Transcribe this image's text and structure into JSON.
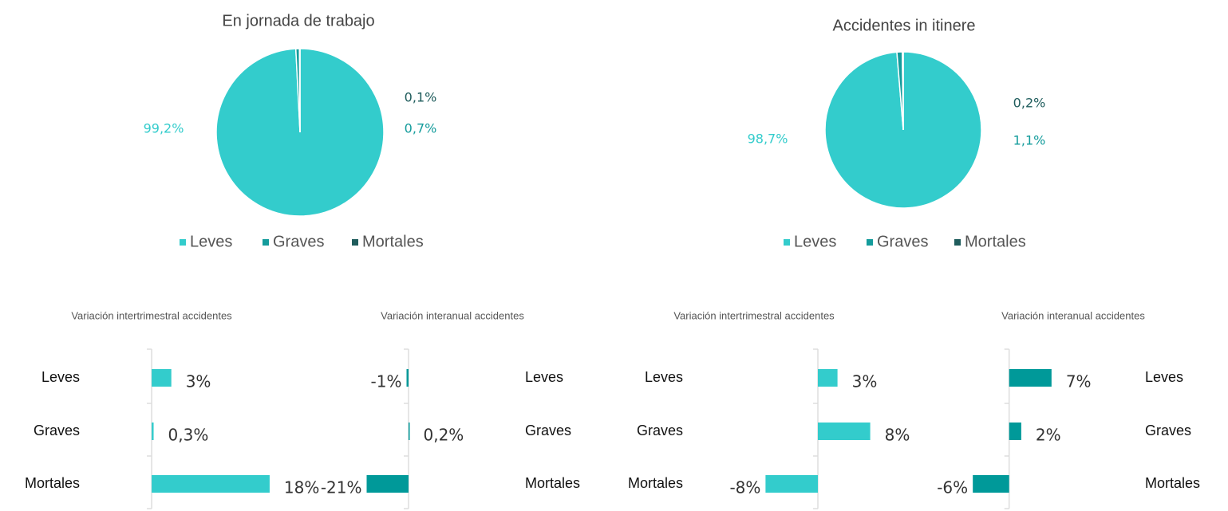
{
  "chart_data": [
    {
      "type": "pie",
      "title": "En jornada de trabajo",
      "categories": [
        "Leves",
        "Graves",
        "Mortales"
      ],
      "values": [
        99.2,
        0.7,
        0.1
      ],
      "value_labels": [
        "99,2%",
        "0,7%",
        "0,1%"
      ],
      "colors": [
        "#33cccc",
        "#149c9c",
        "#1f5c5c"
      ],
      "legend": "bottom"
    },
    {
      "type": "pie",
      "title": "Accidentes in itinere",
      "categories": [
        "Leves",
        "Graves",
        "Mortales"
      ],
      "values": [
        98.7,
        1.1,
        0.2
      ],
      "value_labels": [
        "98,7%",
        "1,1%",
        "0,2%"
      ],
      "colors": [
        "#33cccc",
        "#149c9c",
        "#1f5c5c"
      ],
      "legend": "bottom"
    },
    {
      "type": "hbar",
      "title": "Variación intertrimestral accidentes",
      "categories": [
        "Leves",
        "Graves",
        "Mortales"
      ],
      "values": [
        3,
        0.3,
        18
      ],
      "value_labels": [
        "3%",
        "0,3%",
        "18%"
      ],
      "color": "#33cccc",
      "xlim": [
        -5,
        23
      ]
    },
    {
      "type": "hbar",
      "title": "Variación interanual accidentes",
      "categories": [
        "Leves",
        "Graves",
        "Mortales"
      ],
      "values": [
        -1,
        0.2,
        -21
      ],
      "value_labels": [
        "-1%",
        "0,2%",
        "-21%"
      ],
      "color": "#009999",
      "xlim": [
        -24,
        4
      ]
    },
    {
      "type": "hbar",
      "title": "Variación intertrimestral accidentes",
      "categories": [
        "Leves",
        "Graves",
        "Mortales"
      ],
      "values": [
        3,
        8,
        -8
      ],
      "value_labels": [
        "3%",
        "8%",
        "-8%"
      ],
      "color": "#33cccc",
      "xlim": [
        -10,
        10
      ]
    },
    {
      "type": "hbar",
      "title": "Variación interanual accidentes",
      "categories": [
        "Leves",
        "Graves",
        "Mortales"
      ],
      "values": [
        7,
        2,
        -6
      ],
      "value_labels": [
        "7%",
        "2%",
        "-6%"
      ],
      "color": "#009999",
      "xlim": [
        -8,
        9
      ]
    }
  ]
}
